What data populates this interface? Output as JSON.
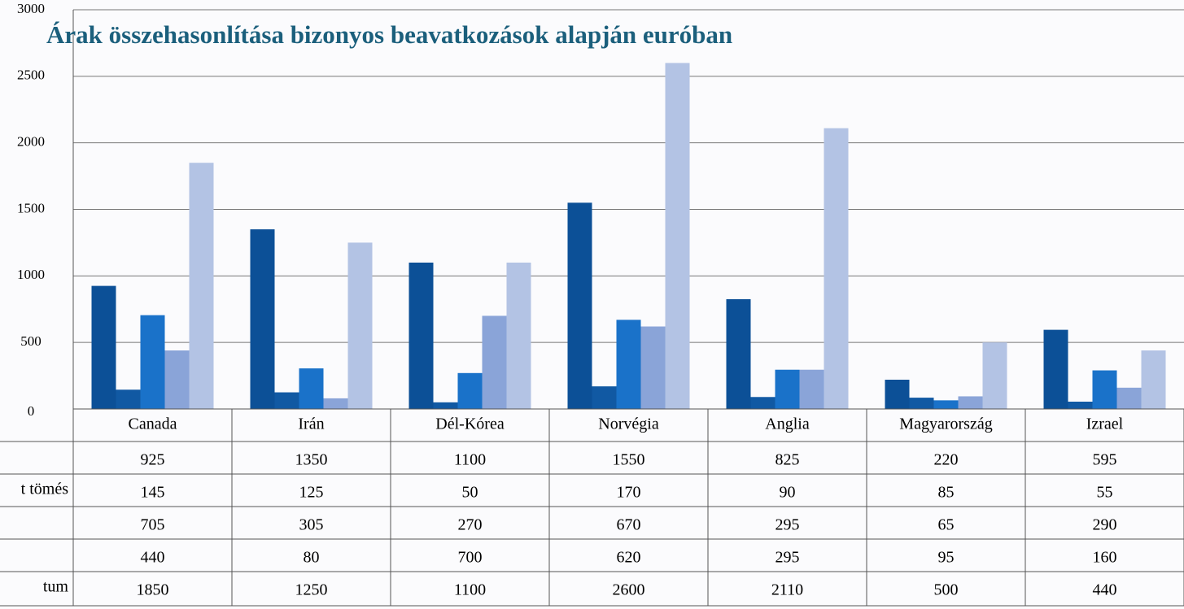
{
  "chart_data": {
    "type": "bar",
    "title": "Árak összehasonlítása bizonyos beavatkozások alapján euróban",
    "categories": [
      "Canada",
      "Irán",
      "Dél-Kórea",
      "Norvégia",
      "Anglia",
      "Magyarország",
      "Izrael"
    ],
    "series": [
      {
        "name": null,
        "color": "#0c5097",
        "values": [
          925,
          1350,
          1100,
          1550,
          825,
          220,
          595
        ]
      },
      {
        "name": "t tömés",
        "color": "#1159a3",
        "values": [
          145,
          125,
          50,
          170,
          90,
          85,
          55
        ]
      },
      {
        "name": null,
        "color": "#1a72c9",
        "values": [
          705,
          305,
          270,
          670,
          295,
          65,
          290
        ]
      },
      {
        "name": null,
        "color": "#8aa4d8",
        "values": [
          440,
          80,
          700,
          620,
          295,
          95,
          160
        ]
      },
      {
        "name": "tum",
        "color": "#b3c3e4",
        "values": [
          1850,
          1250,
          1100,
          2600,
          2110,
          500,
          440
        ]
      }
    ],
    "ylim": [
      0,
      3000
    ],
    "yticks": [
      0,
      500,
      1000,
      1500,
      2000,
      2500,
      3000
    ],
    "grid": true
  }
}
